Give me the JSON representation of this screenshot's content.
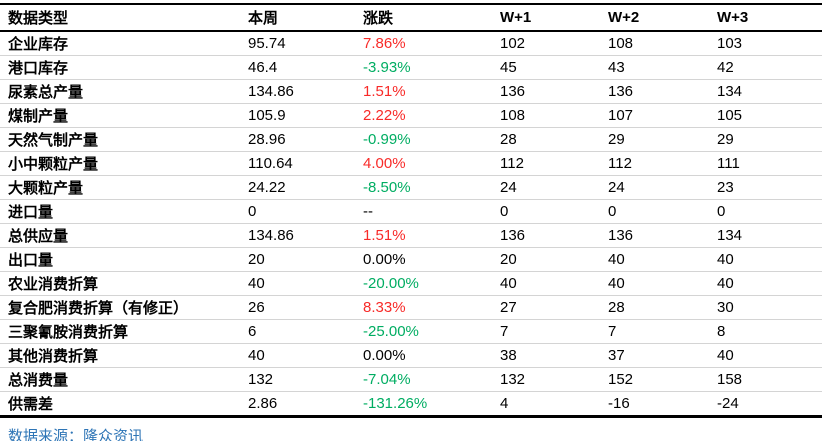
{
  "chart_data": {
    "type": "table",
    "columns": [
      "数据类型",
      "本周",
      "涨跌",
      "W+1",
      "W+2",
      "W+3"
    ],
    "rows": [
      {
        "label": "企业库存",
        "week": "95.74",
        "change": "7.86%",
        "change_dir": "up",
        "w1": "102",
        "w2": "108",
        "w3": "103"
      },
      {
        "label": "港口库存",
        "week": "46.4",
        "change": "-3.93%",
        "change_dir": "down",
        "w1": "45",
        "w2": "43",
        "w3": "42"
      },
      {
        "label": "尿素总产量",
        "week": "134.86",
        "change": "1.51%",
        "change_dir": "up",
        "w1": "136",
        "w2": "136",
        "w3": "134"
      },
      {
        "label": "煤制产量",
        "week": "105.9",
        "change": "2.22%",
        "change_dir": "up",
        "w1": "108",
        "w2": "107",
        "w3": "105"
      },
      {
        "label": "天然气制产量",
        "week": "28.96",
        "change": "-0.99%",
        "change_dir": "down",
        "w1": "28",
        "w2": "29",
        "w3": "29"
      },
      {
        "label": "小中颗粒产量",
        "week": "110.64",
        "change": "4.00%",
        "change_dir": "up",
        "w1": "112",
        "w2": "112",
        "w3": "111"
      },
      {
        "label": "大颗粒产量",
        "week": "24.22",
        "change": "-8.50%",
        "change_dir": "down",
        "w1": "24",
        "w2": "24",
        "w3": "23"
      },
      {
        "label": "进口量",
        "week": "0",
        "change": "--",
        "change_dir": "neutral",
        "w1": "0",
        "w2": "0",
        "w3": "0"
      },
      {
        "label": "总供应量",
        "week": "134.86",
        "change": "1.51%",
        "change_dir": "up",
        "w1": "136",
        "w2": "136",
        "w3": "134"
      },
      {
        "label": "出口量",
        "week": "20",
        "change": "0.00%",
        "change_dir": "neutral",
        "w1": "20",
        "w2": "40",
        "w3": "40"
      },
      {
        "label": "农业消费折算",
        "week": "40",
        "change": "-20.00%",
        "change_dir": "down",
        "w1": "40",
        "w2": "40",
        "w3": "40"
      },
      {
        "label": "复合肥消费折算（有修正）",
        "week": "26",
        "change": "8.33%",
        "change_dir": "up",
        "w1": "27",
        "w2": "28",
        "w3": "30"
      },
      {
        "label": "三聚氰胺消费折算",
        "week": "6",
        "change": "-25.00%",
        "change_dir": "down",
        "w1": "7",
        "w2": "7",
        "w3": "8"
      },
      {
        "label": "其他消费折算",
        "week": "40",
        "change": "0.00%",
        "change_dir": "neutral",
        "w1": "38",
        "w2": "37",
        "w3": "40"
      },
      {
        "label": "总消费量",
        "week": "132",
        "change": "-7.04%",
        "change_dir": "down",
        "w1": "132",
        "w2": "152",
        "w3": "158"
      },
      {
        "label": "供需差",
        "week": "2.86",
        "change": "-131.26%",
        "change_dir": "down",
        "w1": "4",
        "w2": "-16",
        "w3": "-24"
      }
    ]
  },
  "footer": {
    "source": "数据来源：隆众资讯"
  },
  "colors": {
    "up": "#f82a28",
    "down": "#00ad62",
    "neutral": "#000000",
    "source_blue": "#2e75b6"
  }
}
